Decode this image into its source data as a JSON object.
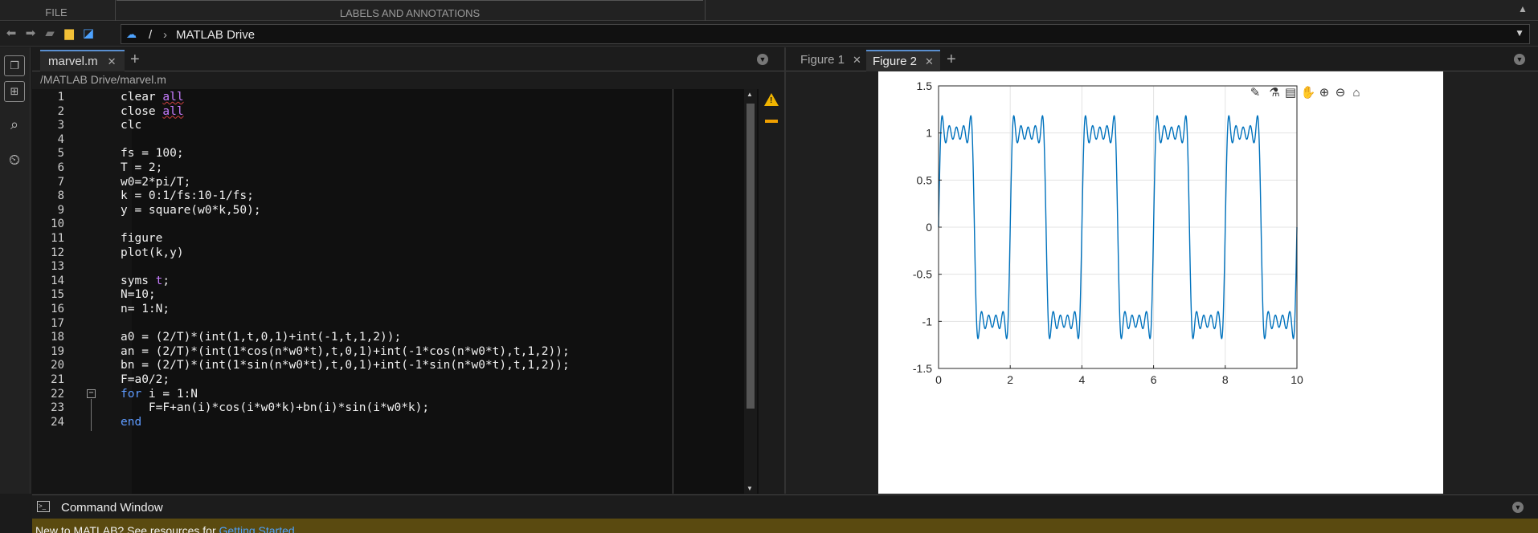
{
  "toolstrip": {
    "file_label": "FILE",
    "labels_label": "LABELS AND ANNOTATIONS"
  },
  "address": {
    "sep": "/",
    "chevron": "›",
    "location": "MATLAB Drive"
  },
  "editor": {
    "tab_label": "marvel.m",
    "path": "/MATLAB Drive/marvel.m",
    "lines": [
      {
        "n": "1",
        "text": "clear all"
      },
      {
        "n": "2",
        "text": "close all"
      },
      {
        "n": "3",
        "text": "clc"
      },
      {
        "n": "4",
        "text": ""
      },
      {
        "n": "5",
        "text": "fs = 100;"
      },
      {
        "n": "6",
        "text": "T = 2;"
      },
      {
        "n": "7",
        "text": "w0=2*pi/T;"
      },
      {
        "n": "8",
        "text": "k = 0:1/fs:10-1/fs;"
      },
      {
        "n": "9",
        "text": "y = square(w0*k,50);"
      },
      {
        "n": "10",
        "text": ""
      },
      {
        "n": "11",
        "text": "figure"
      },
      {
        "n": "12",
        "text": "plot(k,y)"
      },
      {
        "n": "13",
        "text": ""
      },
      {
        "n": "14",
        "text": "syms t;"
      },
      {
        "n": "15",
        "text": "N=10;"
      },
      {
        "n": "16",
        "text": "n= 1:N;"
      },
      {
        "n": "17",
        "text": ""
      },
      {
        "n": "18",
        "text": "a0 = (2/T)*(int(1,t,0,1)+int(-1,t,1,2));"
      },
      {
        "n": "19",
        "text": "an = (2/T)*(int(1*cos(n*w0*t),t,0,1)+int(-1*cos(n*w0*t),t,1,2));"
      },
      {
        "n": "20",
        "text": "bn = (2/T)*(int(1*sin(n*w0*t),t,0,1)+int(-1*sin(n*w0*t),t,1,2));"
      },
      {
        "n": "21",
        "text": "F=a0/2;"
      },
      {
        "n": "22",
        "text": "for i = 1:N"
      },
      {
        "n": "23",
        "text": "    F=F+an(i)*cos(i*w0*k)+bn(i)*sin(i*w0*k);"
      },
      {
        "n": "24",
        "text": "end"
      }
    ]
  },
  "figures": {
    "tabs": [
      {
        "label": "Figure 1"
      },
      {
        "label": "Figure 2"
      }
    ],
    "active": "Figure 2"
  },
  "chart_data": {
    "type": "line",
    "title": "",
    "xlabel": "",
    "ylabel": "",
    "xlim": [
      0,
      10
    ],
    "ylim": [
      -1.5,
      1.5
    ],
    "xticks": [
      0,
      2,
      4,
      6,
      8,
      10
    ],
    "yticks": [
      -1.5,
      -1,
      -0.5,
      0,
      0.5,
      1,
      1.5
    ],
    "xtick_labels": [
      "0",
      "2",
      "4",
      "6",
      "8",
      "10"
    ],
    "ytick_labels": [
      "-1.5",
      "-1",
      "-0.5",
      "0",
      "0.5",
      "1",
      "1.5"
    ],
    "grid": true,
    "line_color": "#0072bd",
    "series": [
      {
        "description_of_values": "Fourier partial sum (N=10, period 2) of a square wave ±1",
        "x": [
          0,
          0.05,
          0.1,
          0.15,
          0.2,
          0.25,
          0.3,
          0.35,
          0.4,
          0.45,
          0.5,
          0.55,
          0.6,
          0.65,
          0.7,
          0.75,
          0.8,
          0.85,
          0.9,
          0.95,
          1.0,
          1.05,
          1.1,
          1.15,
          1.2,
          1.25,
          1.3,
          1.35,
          1.4,
          1.45,
          1.5,
          1.55,
          1.6,
          1.65,
          1.7,
          1.75,
          1.8,
          1.85,
          1.9,
          1.95,
          2.0
        ],
        "y": [
          0,
          1.08,
          1.17,
          0.98,
          0.91,
          1.08,
          1.08,
          0.92,
          0.98,
          1.09,
          1.0,
          1.09,
          0.98,
          0.92,
          1.08,
          1.08,
          0.91,
          0.98,
          1.17,
          1.08,
          0,
          -1.08,
          -1.17,
          -0.98,
          -0.91,
          -1.08,
          -1.08,
          -0.92,
          -0.98,
          -1.09,
          -1.0,
          -1.09,
          -0.98,
          -0.92,
          -1.08,
          -1.08,
          -0.91,
          -0.98,
          -1.17,
          -1.08,
          0
        ],
        "period_repeats_to": 10
      }
    ]
  },
  "command_window": {
    "title": "Command Window",
    "message": "New to MATLAB? See resources for ",
    "link": "Getting Started"
  },
  "colors": {
    "accent": "#5a8fd0",
    "keyword": "#5e9bff",
    "string_var": "#c77dff",
    "warning": "#f0b400"
  }
}
